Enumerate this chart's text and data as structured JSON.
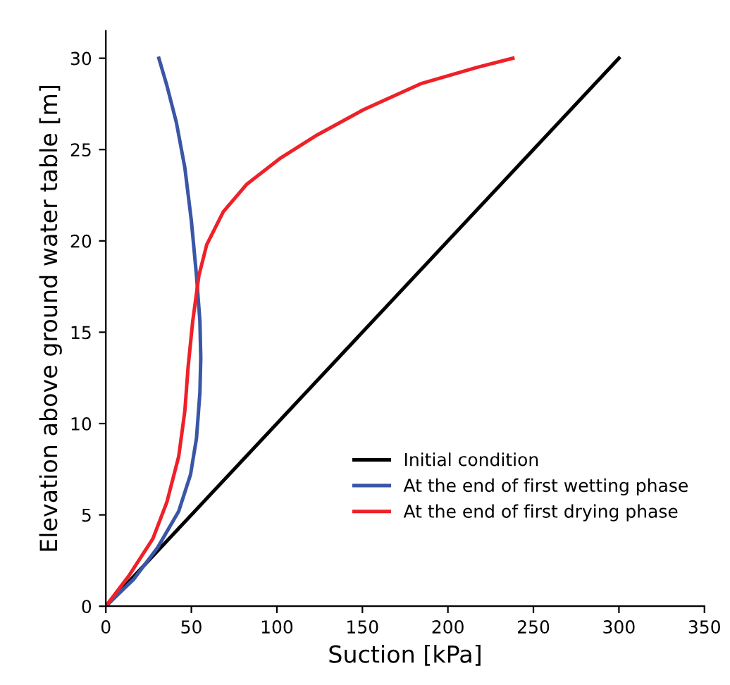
{
  "chart_data": {
    "type": "line",
    "xlabel": "Suction [kPa]",
    "ylabel": "Elevation above ground water table [m]",
    "xlim": [
      0,
      350
    ],
    "ylim": [
      0,
      31.5
    ],
    "xticks": [
      0,
      50,
      100,
      150,
      200,
      250,
      300,
      350
    ],
    "yticks": [
      0,
      5,
      10,
      15,
      20,
      25,
      30
    ],
    "grid": false,
    "legend": "bottom right",
    "line_style": "solid",
    "marker": "none",
    "series": [
      {
        "name": "Initial condition",
        "color": "#000000",
        "x": [
          0,
          300
        ],
        "values": [
          0,
          30
        ]
      },
      {
        "name": "At the end of first wetting phase",
        "color": "#3a56a6",
        "x": [
          0,
          16.5,
          30.2,
          42.6,
          49.5,
          53,
          55,
          55.5,
          55,
          53,
          50,
          46.2,
          41.2,
          35.7,
          31
        ],
        "values": [
          0,
          1.5,
          3.2,
          5.2,
          7.2,
          9.2,
          11.7,
          13.6,
          15.6,
          18.1,
          21.1,
          24,
          26.5,
          28.5,
          30
        ]
      },
      {
        "name": "At the end of first drying phase",
        "color": "#ee2129",
        "x": [
          0,
          13.7,
          27.5,
          35.7,
          42.6,
          46.2,
          48.1,
          50.8,
          54.4,
          59,
          68.7,
          82.4,
          101.6,
          123.6,
          151,
          184,
          217,
          238
        ],
        "values": [
          0,
          1.7,
          3.7,
          5.7,
          8.2,
          10.7,
          13.1,
          15.6,
          18.1,
          19.8,
          21.6,
          23.1,
          24.5,
          25.8,
          27.2,
          28.6,
          29.5,
          30
        ]
      }
    ]
  }
}
